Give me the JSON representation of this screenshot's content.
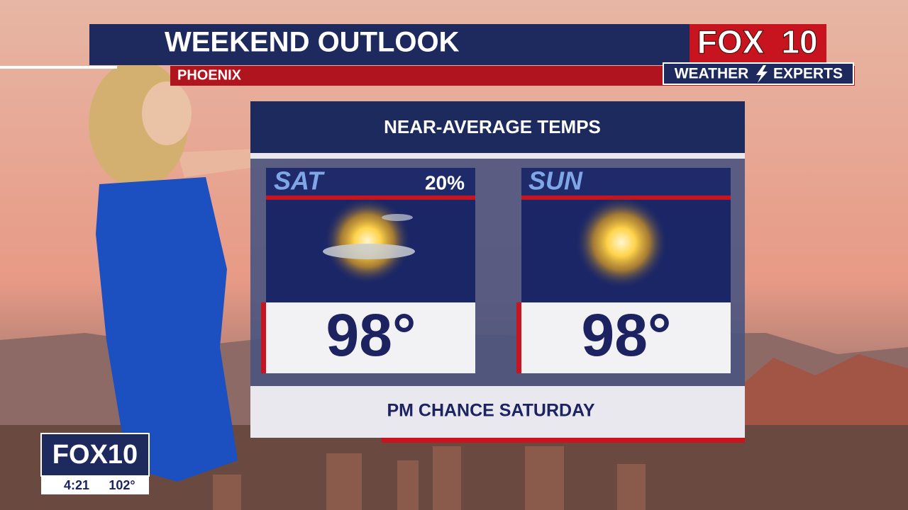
{
  "header": {
    "title": "WEEKEND OUTLOOK",
    "location": "PHOENIX"
  },
  "logo": {
    "brand": "FOX",
    "number": "10",
    "tagline_left": "WEATHER",
    "tagline_right": "EXPERTS"
  },
  "panel": {
    "title": "NEAR-AVERAGE TEMPS",
    "days": [
      {
        "label": "SAT",
        "precip": "20%",
        "temp": "98°"
      },
      {
        "label": "SUN",
        "temp": "98°"
      }
    ],
    "footer": "PM CHANCE SATURDAY"
  },
  "bug": {
    "logo": "FOX10",
    "time": "4:21",
    "temp": "102°"
  }
}
